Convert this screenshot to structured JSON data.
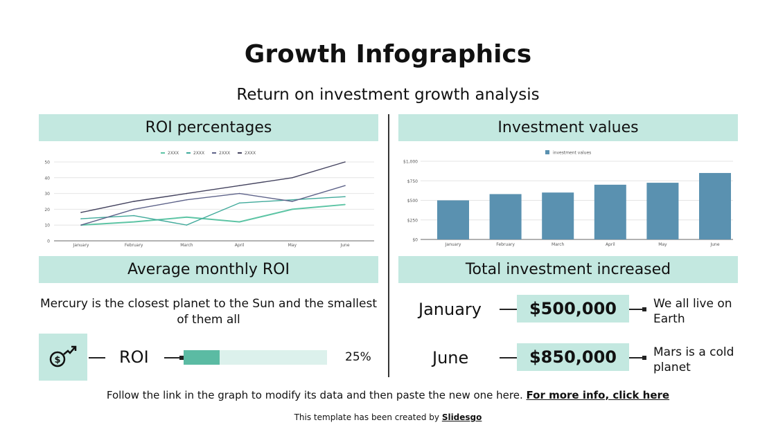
{
  "title": "Growth Infographics",
  "subtitle": "Return on investment growth analysis",
  "headers": {
    "roi_percentages": "ROI percentages",
    "investment_values": "Investment values",
    "average_monthly_roi": "Average monthly ROI",
    "total_investment": "Total investment increased"
  },
  "chart_data": [
    {
      "type": "line",
      "categories": [
        "January",
        "February",
        "March",
        "April",
        "May",
        "June"
      ],
      "ylim": [
        0,
        50
      ],
      "yticks": [
        0,
        10,
        20,
        30,
        40,
        50
      ],
      "grid": true,
      "legend": "top",
      "series": [
        {
          "name": "2XXX",
          "color": "#5cc4a4",
          "values": [
            10,
            12,
            15,
            12,
            20,
            23
          ]
        },
        {
          "name": "2XXX",
          "color": "#3fa99a",
          "values": [
            14,
            16,
            10,
            24,
            26,
            28
          ]
        },
        {
          "name": "2XXX",
          "color": "#5d6289",
          "values": [
            10,
            20,
            26,
            30,
            25,
            35
          ]
        },
        {
          "name": "2XXX",
          "color": "#43425e",
          "values": [
            18,
            25,
            30,
            35,
            40,
            50
          ]
        }
      ]
    },
    {
      "type": "bar",
      "categories": [
        "January",
        "February",
        "March",
        "April",
        "May",
        "June"
      ],
      "ylim": [
        0,
        1000
      ],
      "yticks": [
        "$0",
        "$250",
        "$500",
        "$750",
        "$1,000"
      ],
      "grid": true,
      "legend": "top",
      "series": [
        {
          "name": "investment values",
          "color": "#5a91b0",
          "values": [
            500,
            580,
            600,
            700,
            725,
            850
          ]
        }
      ]
    }
  ],
  "average": {
    "description": "Mercury is the closest planet to the Sun and the smallest of them all",
    "icon": "money-growth-icon",
    "label": "ROI",
    "percent_value": 25,
    "percent_label": "25%",
    "bar_color": "#5bbba3",
    "track_color": "#dcf1ec"
  },
  "totals": [
    {
      "month": "January",
      "value": "$500,000",
      "note": "We all live on Earth"
    },
    {
      "month": "June",
      "value": "$850,000",
      "note": "Mars is a cold planet"
    }
  ],
  "footer": {
    "text": "Follow the link in the graph to modify its data and then paste the new one here.",
    "link": "For more info, click here",
    "credit_text": "This template has been created by",
    "credit_link": "Slidesgo"
  }
}
